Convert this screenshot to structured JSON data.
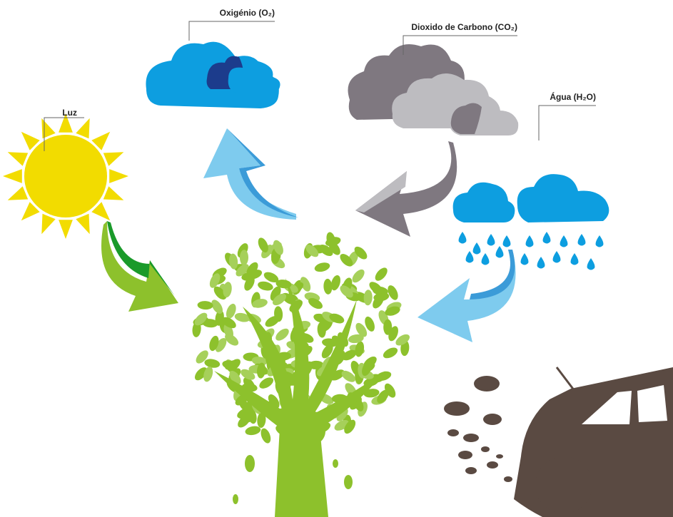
{
  "labels": {
    "light": "Luz",
    "oxygen": "Oxigénio (O₂)",
    "carbon_dioxide": "Dioxido de Carbono (CO₂)",
    "water": "Água (H₂O)"
  }
}
